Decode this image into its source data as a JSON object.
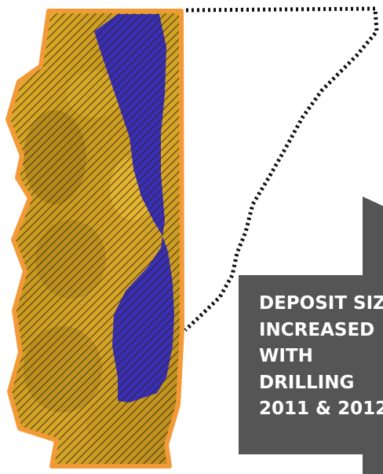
{
  "map": {
    "colors": {
      "border": "#f39a38",
      "fill_gold": "#d4a320",
      "fill_blue": "#3a2fb4",
      "hatch": "#2b2418",
      "callout_bg": "#555555",
      "callout_text": "#ffffff",
      "dotted_outline": "#111111"
    },
    "legend_features": [
      "orange-outline-ore-zone",
      "blue-deposit-zone",
      "dotted-expansion-area"
    ]
  },
  "callout": {
    "lines": [
      "DEPOSIT SIZE",
      "INCREASED",
      "WITH",
      "DRILLING",
      "2011 & 2012"
    ]
  }
}
